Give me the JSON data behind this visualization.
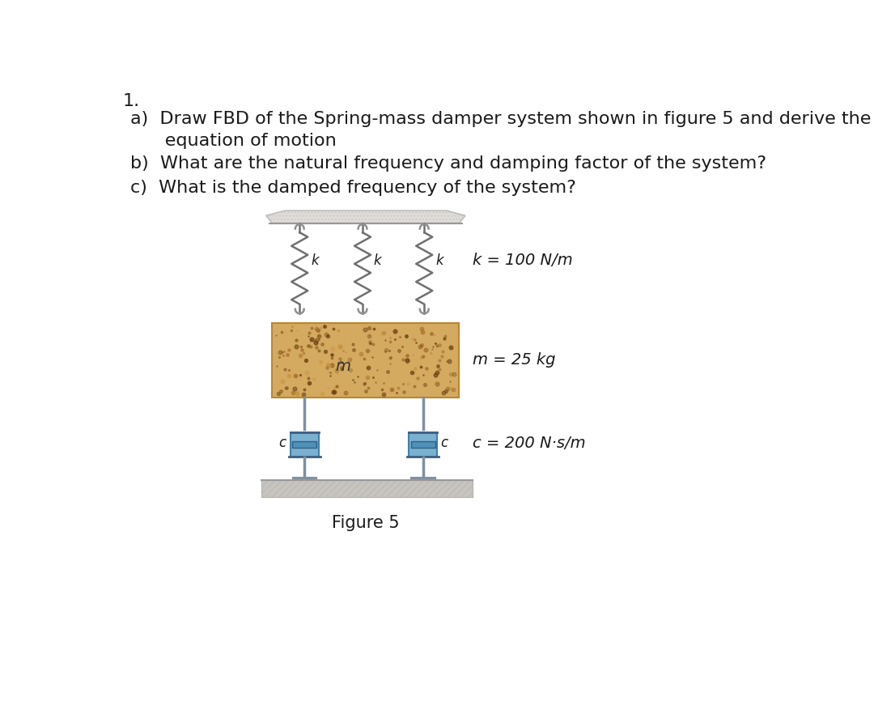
{
  "question_a": "a)  Draw FBD of the Spring-mass damper system shown in figure 5 and derive the",
  "question_a2": "      equation of motion",
  "question_b": "b)  What are the natural frequency and damping factor of the system?",
  "question_c": "c)  What is the damped frequency of the system?",
  "figure_caption": "Figure 5",
  "label_k": "k = 100 N/m",
  "label_m": "m = 25 kg",
  "label_c": "c = 200 N·s/m",
  "spring_k_label": "k",
  "damper_c_label": "c",
  "mass_label": "m",
  "bg_color": "#ffffff",
  "text_color": "#1a1a1a",
  "ceiling_color_light": "#e0ddd8",
  "ceiling_color_dark": "#b0aca8",
  "mass_color": "#d4aa60",
  "damper_body_color_outer": "#7ab0d0",
  "damper_body_color_inner": "#5090b8",
  "damper_rod_color": "#8090a0",
  "ground_color": "#c8c4be",
  "spring_color": "#707070",
  "hook_color": "#909090",
  "font_size_text": 16,
  "font_size_labels": 14,
  "font_size_small": 13
}
